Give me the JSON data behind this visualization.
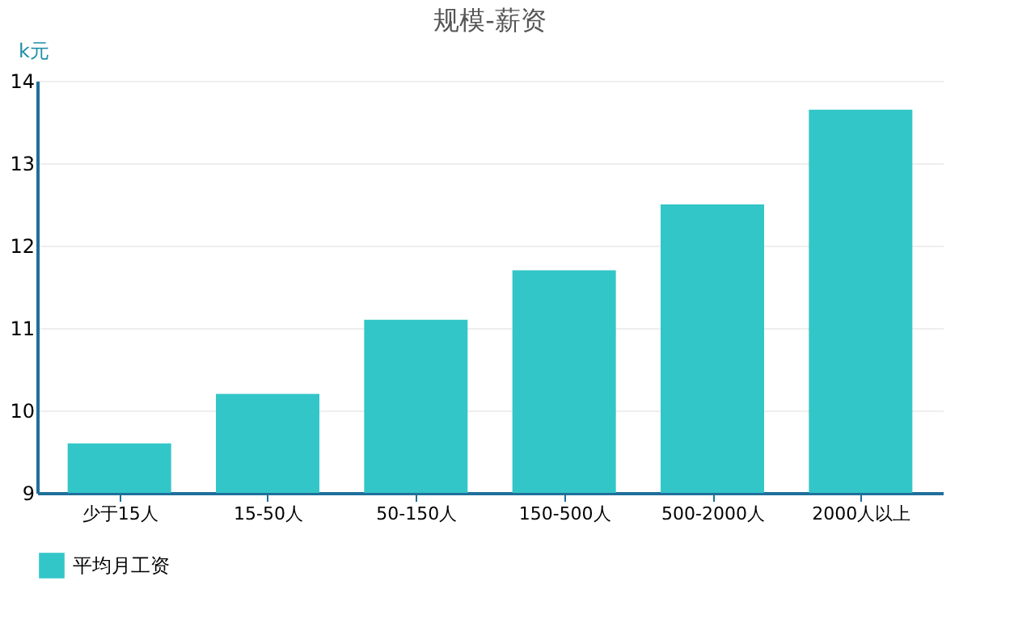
{
  "chart_data": {
    "type": "bar",
    "title": "规模-薪资",
    "ylabel": "k元",
    "categories": [
      "少于15人",
      "15-50人",
      "50-150人",
      "150-500人",
      "500-2000人",
      "2000人以上"
    ],
    "series": [
      {
        "name": "平均月工资",
        "color": "#33c6c8",
        "values": [
          9.6,
          10.2,
          11.1,
          11.7,
          12.5,
          13.65
        ]
      }
    ],
    "ylim": [
      9,
      14
    ],
    "yticks": [
      9,
      10,
      11,
      12,
      13,
      14
    ],
    "grid": "y",
    "legend": "bottom"
  }
}
